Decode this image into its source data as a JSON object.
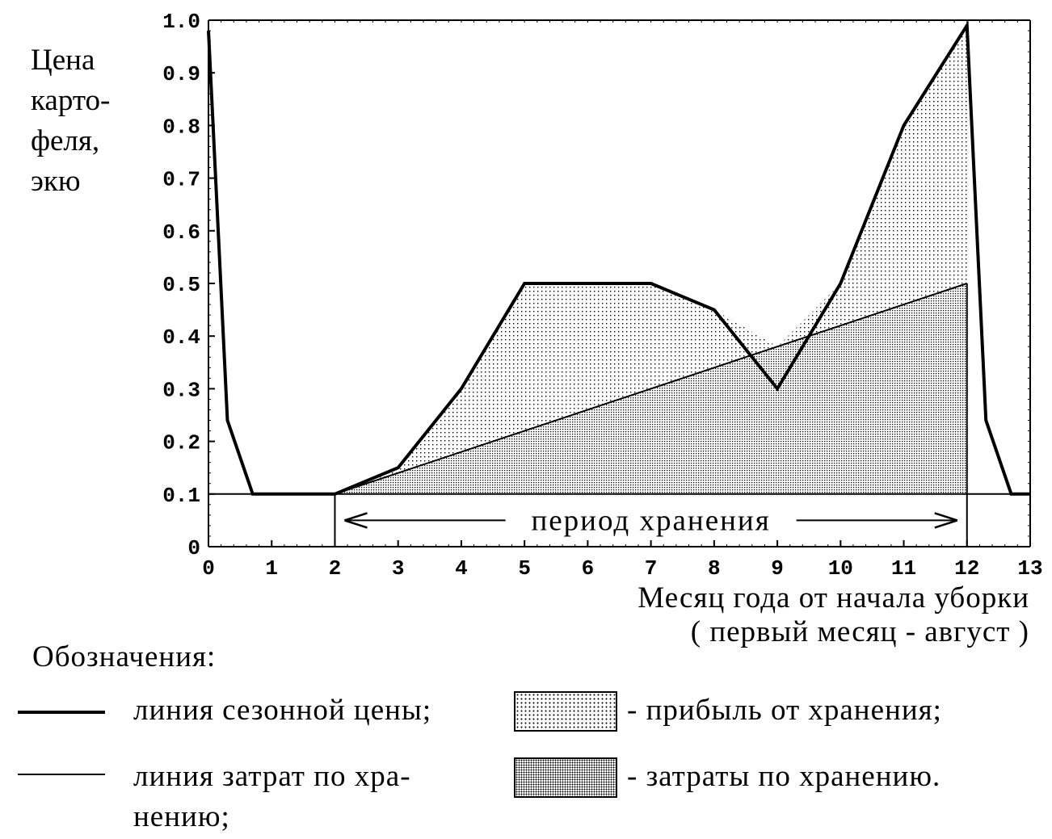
{
  "chart_data": {
    "type": "area",
    "title": "",
    "ylabel_lines": [
      "Цена",
      "карто-",
      "феля,",
      "экю"
    ],
    "xlabel_lines": [
      "Месяц года от начала уборки",
      "( первый месяц - август )"
    ],
    "xlim": [
      0,
      13
    ],
    "ylim": [
      0,
      1.0
    ],
    "x_ticks": [
      "0",
      "1",
      "2",
      "3",
      "4",
      "5",
      "6",
      "7",
      "8",
      "9",
      "10",
      "11",
      "12",
      "13"
    ],
    "y_ticks": [
      "0",
      "0.1",
      "0.2",
      "0.3",
      "0.4",
      "0.5",
      "0.6",
      "0.7",
      "0.8",
      "0.9",
      "1.0"
    ],
    "baseline": 0.1,
    "series": [
      {
        "name": "линия сезонной цены",
        "x": [
          0,
          0.3,
          0.7,
          2,
          3,
          4,
          5,
          6,
          7,
          8,
          9,
          10,
          11,
          12,
          12.3,
          12.7,
          13
        ],
        "y": [
          0.98,
          0.24,
          0.1,
          0.1,
          0.15,
          0.3,
          0.5,
          0.5,
          0.5,
          0.45,
          0.3,
          0.5,
          0.8,
          0.99,
          0.24,
          0.1,
          0.1
        ]
      },
      {
        "name": "линия затрат по хранению",
        "x": [
          2,
          12
        ],
        "y": [
          0.1,
          0.5
        ]
      }
    ],
    "storage_period": {
      "label": "период хранения",
      "start": 2,
      "end": 12,
      "y": 0.05
    },
    "grid": false
  },
  "legend": {
    "title": "Обозначения:",
    "items": [
      {
        "text": "линия сезонной цены;"
      },
      {
        "text": "линия затрат по хра-",
        "text2": "нению;"
      },
      {
        "text": "- прибыль от хранения;"
      },
      {
        "text": "- затраты по хранению."
      }
    ]
  }
}
